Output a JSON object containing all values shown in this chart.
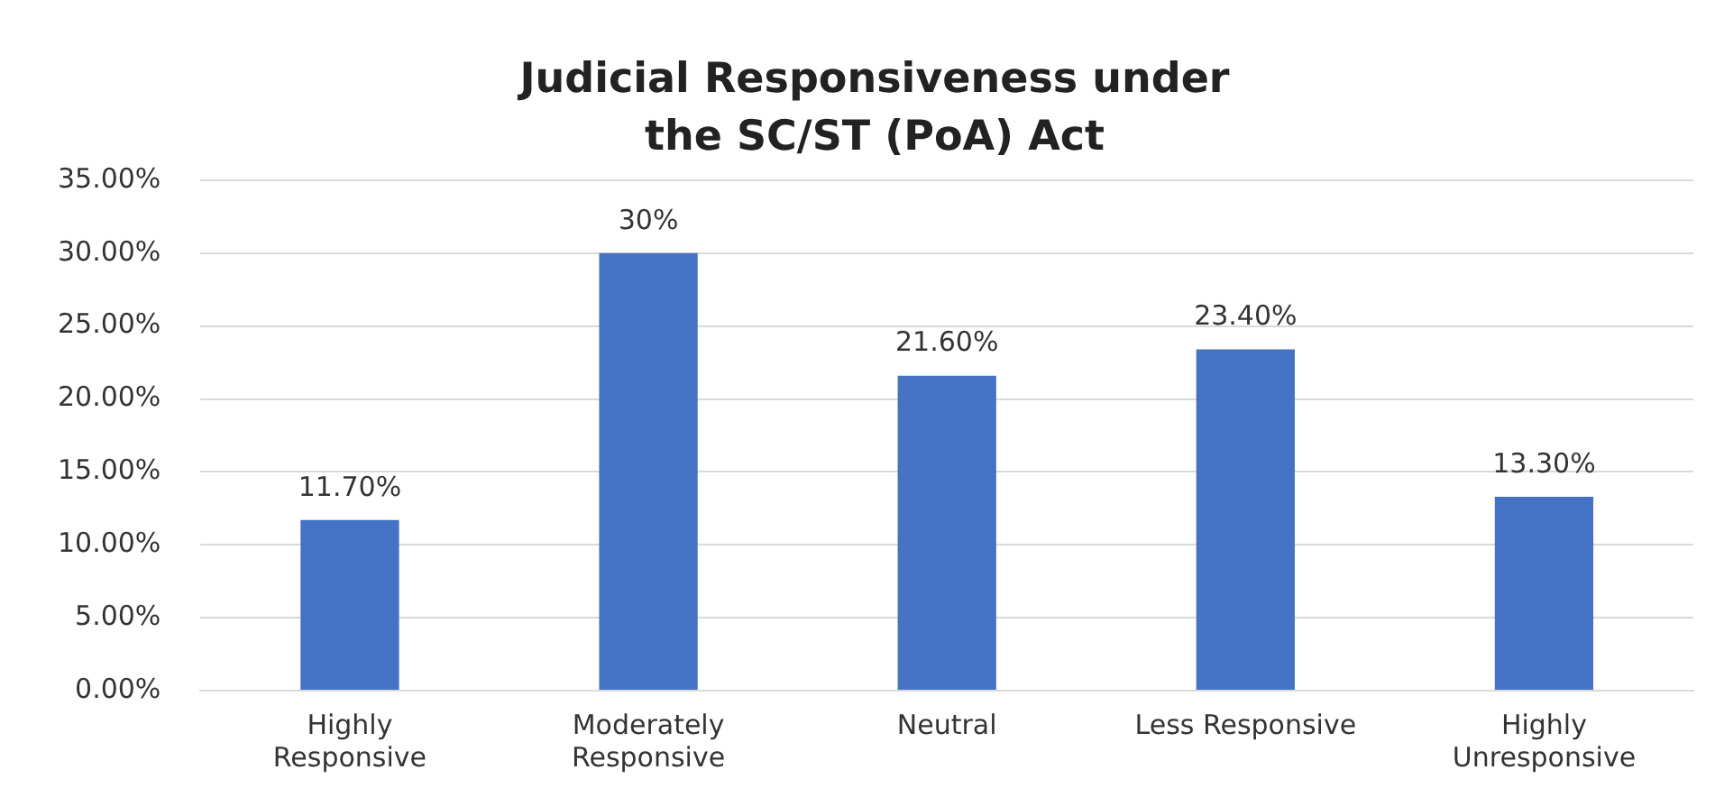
{
  "chart_data": {
    "type": "bar",
    "title": "Judicial Responsiveness under the SC/ST (PoA) Act",
    "categories": [
      "Highly Responsive",
      "Moderately Responsive",
      "Neutral",
      "Less Responsive",
      "Highly Unresponsive"
    ],
    "values": [
      11.7,
      30,
      21.6,
      23.4,
      13.3
    ],
    "value_labels": [
      "11.70%",
      "30%",
      "21.60%",
      "23.40%",
      "13.30%"
    ],
    "color": "#4472c4",
    "ylim": [
      0,
      35
    ],
    "yticks": [
      {
        "value": 0,
        "label": "0.00%"
      },
      {
        "value": 5,
        "label": "5.00%"
      },
      {
        "value": 10,
        "label": "10.00%"
      },
      {
        "value": 15,
        "label": "15.00%"
      },
      {
        "value": 20,
        "label": "20.00%"
      },
      {
        "value": 25,
        "label": "25.00%"
      },
      {
        "value": 30,
        "label": "30.00%"
      },
      {
        "value": 35,
        "label": "35.00%"
      }
    ],
    "grid": "y"
  }
}
